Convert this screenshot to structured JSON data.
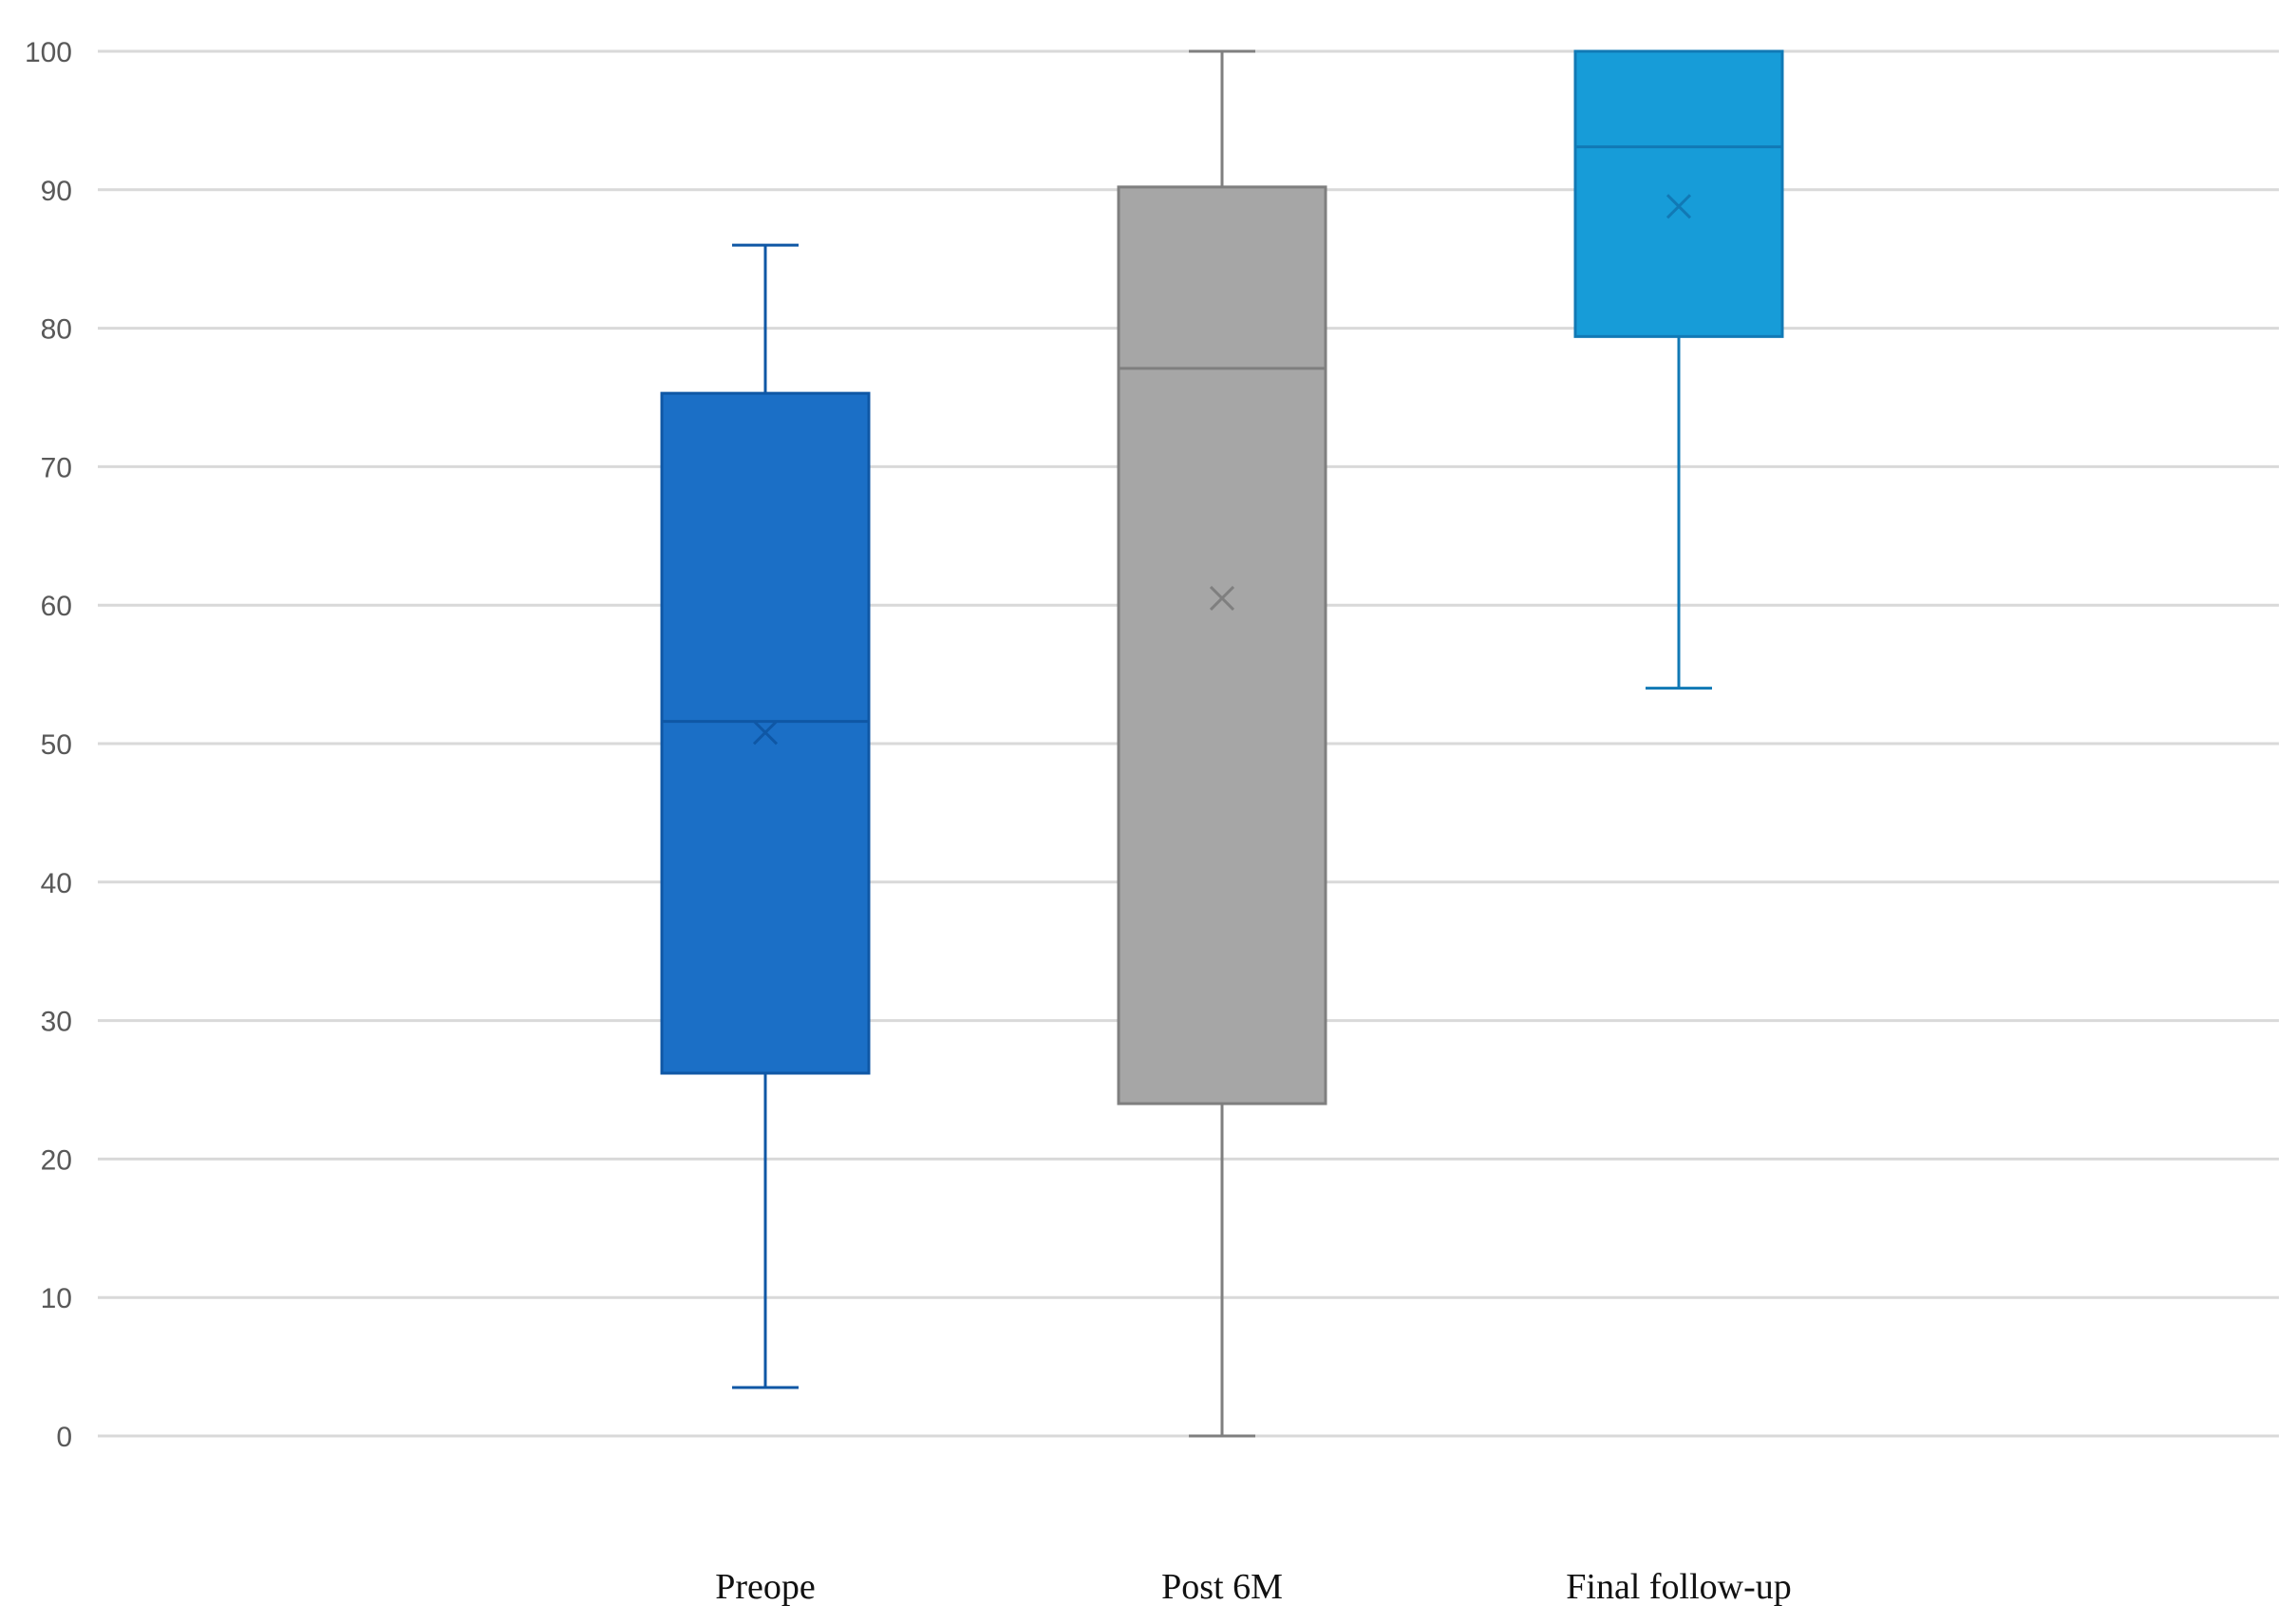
{
  "chart_data": {
    "type": "box",
    "title": "",
    "xlabel": "",
    "ylabel": "",
    "ylim": [
      0,
      100
    ],
    "yticks": [
      0,
      10,
      20,
      30,
      40,
      50,
      60,
      70,
      80,
      90,
      100
    ],
    "grid": true,
    "legend": "none",
    "categories": [
      "Preope",
      "Post 6M",
      "Final follow-up"
    ],
    "boxes": [
      {
        "category": "Preope",
        "min": 3.5,
        "q1": 26.2,
        "median": 51.6,
        "q3": 75.3,
        "max": 86,
        "mean": 50.8,
        "color": "#1b6fc6",
        "line_color": "#0f57a5"
      },
      {
        "category": "Post 6M",
        "min": 0,
        "q1": 24,
        "median": 77.1,
        "q3": 90.2,
        "max": 100,
        "mean": 60.5,
        "color": "#a6a6a6",
        "line_color": "#7f7f7f"
      },
      {
        "category": "Final follow-up",
        "min": 54,
        "q1": 79.4,
        "median": 93.1,
        "q3": 100,
        "max": 100,
        "mean": 88.8,
        "color": "#179cd8",
        "line_color": "#1179b5"
      }
    ]
  }
}
